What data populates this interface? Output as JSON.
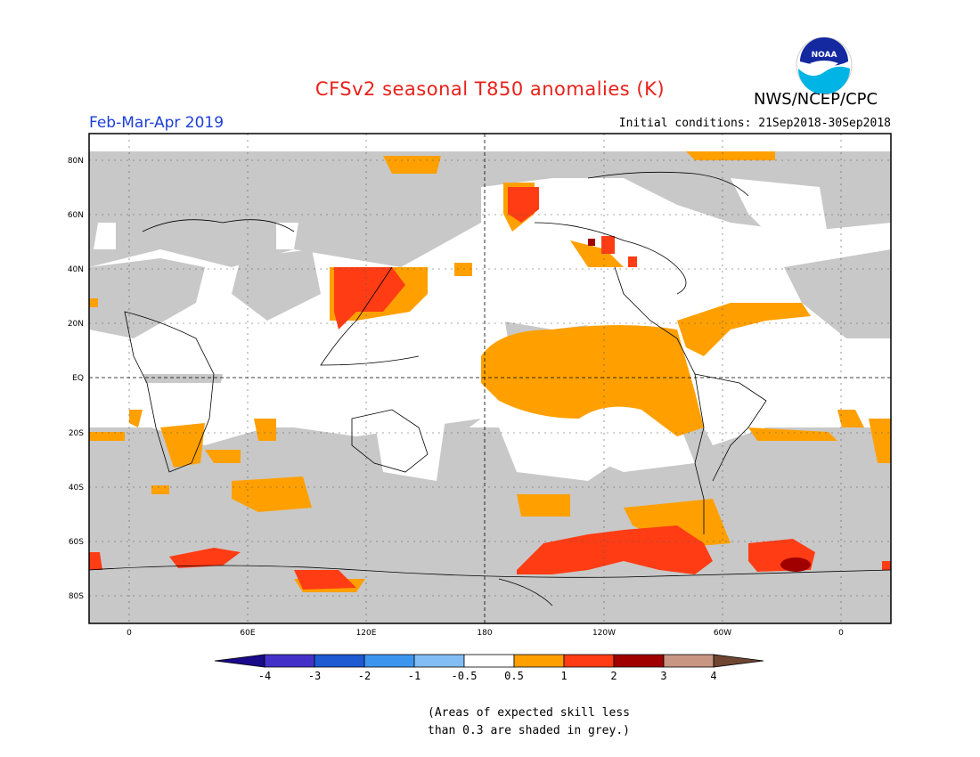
{
  "header": {
    "title": "CFSv2 seasonal T850 anomalies (K)",
    "agency": "NWS/NCEP/CPC",
    "logo_text": "NOAA",
    "season": "Feb-Mar-Apr 2019",
    "initial_conditions": "Initial conditions: 21Sep2018-30Sep2018"
  },
  "map": {
    "lat_labels": [
      "80N",
      "60N",
      "40N",
      "20N",
      "EQ",
      "20S",
      "40S",
      "60S",
      "80S"
    ],
    "lon_labels": [
      "0",
      "60E",
      "120E",
      "180",
      "120W",
      "60W",
      "0"
    ],
    "colors": {
      "grey": "#c8c8c8",
      "pos_0_5_1": "#ffa000",
      "pos_1_2": "#ff3c14",
      "pos_2_3": "#a00000",
      "ocean_border": "#000000"
    }
  },
  "colorbar": {
    "labels": [
      "-4",
      "-3",
      "-2",
      "-1",
      "-0.5",
      "0.5",
      "1",
      "2",
      "3",
      "4"
    ],
    "colors": [
      "#1a0a8a",
      "#4432c8",
      "#1e5ad2",
      "#3c96f0",
      "#82bef5",
      "#ffffff",
      "#ffa000",
      "#ff3c14",
      "#a00000",
      "#c89682",
      "#6e4632"
    ]
  },
  "footnote": {
    "line1": "(Areas of expected skill less",
    "line2": "than 0.3 are shaded in grey.)"
  }
}
